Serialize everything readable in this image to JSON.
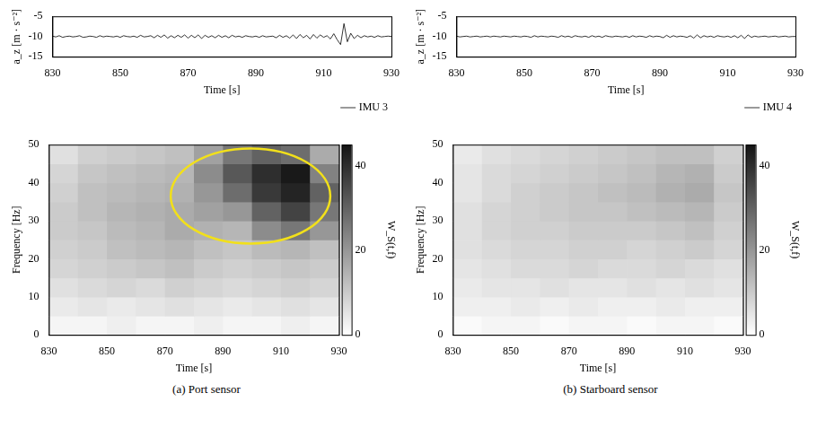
{
  "chart_data": [
    {
      "type": "line",
      "xlabel": "Time [s]",
      "ylabel": "a_z [m · s⁻²]",
      "xlim": [
        830,
        930
      ],
      "xticks": [
        830,
        850,
        870,
        890,
        910,
        930
      ],
      "ylim": [
        -15,
        -5
      ],
      "yticks": [
        -15,
        -10,
        -5
      ],
      "grid": false,
      "legend": "lower right",
      "x": [
        830,
        831,
        832,
        833,
        834,
        835,
        836,
        837,
        838,
        839,
        840,
        841,
        842,
        843,
        844,
        845,
        846,
        847,
        848,
        849,
        850,
        851,
        852,
        853,
        854,
        855,
        856,
        857,
        858,
        859,
        860,
        861,
        862,
        863,
        864,
        865,
        866,
        867,
        868,
        869,
        870,
        871,
        872,
        873,
        874,
        875,
        876,
        877,
        878,
        879,
        880,
        881,
        882,
        883,
        884,
        885,
        886,
        887,
        888,
        889,
        890,
        891,
        892,
        893,
        894,
        895,
        896,
        897,
        898,
        899,
        900,
        901,
        902,
        903,
        904,
        905,
        906,
        907,
        908,
        909,
        910,
        911,
        912,
        913,
        914,
        915,
        916,
        917,
        918,
        919,
        920,
        921,
        922,
        923,
        924,
        925,
        926,
        927,
        928,
        929,
        930
      ],
      "series": [
        {
          "name": "IMU 3",
          "color": "#000000",
          "values": [
            -9.9,
            -10.1,
            -9.8,
            -10.2,
            -10.0,
            -9.9,
            -10.1,
            -10.0,
            -9.8,
            -10.2,
            -10.1,
            -9.9,
            -10.0,
            -10.2,
            -9.8,
            -10.1,
            -9.9,
            -10.0,
            -10.1,
            -9.9,
            -10.2,
            -9.8,
            -10.0,
            -10.1,
            -9.9,
            -10.2,
            -9.7,
            -10.1,
            -10.0,
            -9.8,
            -10.3,
            -9.7,
            -10.2,
            -9.6,
            -10.4,
            -9.8,
            -10.3,
            -9.7,
            -10.2,
            -9.6,
            -10.4,
            -9.7,
            -10.3,
            -9.6,
            -10.5,
            -9.7,
            -10.2,
            -9.8,
            -10.3,
            -9.7,
            -10.2,
            -9.8,
            -10.3,
            -9.7,
            -10.1,
            -9.9,
            -10.2,
            -9.8,
            -10.0,
            -10.1,
            -9.9,
            -10.2,
            -9.8,
            -10.1,
            -10.0,
            -9.9,
            -10.3,
            -9.7,
            -10.2,
            -9.8,
            -10.4,
            -9.6,
            -10.5,
            -9.5,
            -10.3,
            -9.7,
            -10.6,
            -9.5,
            -10.4,
            -9.6,
            -10.2,
            -9.8,
            -10.6,
            -9.3,
            -10.8,
            -12.0,
            -6.8,
            -11.3,
            -9.2,
            -10.5,
            -9.7,
            -10.3,
            -9.8,
            -10.1,
            -9.9,
            -10.2,
            -9.8,
            -10.1,
            -10.0,
            -9.9,
            -10.0
          ]
        }
      ]
    },
    {
      "type": "heatmap",
      "xlabel": "Time [s]",
      "ylabel": "Frequency [Hz]",
      "caption": "(a) Port sensor",
      "xlim": [
        830,
        930
      ],
      "xticks": [
        830,
        850,
        870,
        890,
        910,
        930
      ],
      "ylim": [
        0,
        50
      ],
      "yticks": [
        0,
        10,
        20,
        30,
        40,
        50
      ],
      "x_bins": [
        830,
        840,
        850,
        860,
        870,
        880,
        890,
        900,
        910,
        920,
        930
      ],
      "y_bins": [
        0,
        5,
        10,
        15,
        20,
        25,
        30,
        35,
        40,
        45,
        50
      ],
      "cells": [
        [
          2,
          2,
          3,
          2,
          2,
          3,
          2,
          2,
          3,
          2
        ],
        [
          4,
          5,
          4,
          5,
          6,
          5,
          4,
          5,
          6,
          5
        ],
        [
          6,
          7,
          8,
          7,
          9,
          8,
          7,
          8,
          9,
          8
        ],
        [
          8,
          9,
          10,
          11,
          12,
          10,
          9,
          10,
          11,
          10
        ],
        [
          9,
          10,
          12,
          13,
          14,
          12,
          11,
          13,
          14,
          12
        ],
        [
          10,
          11,
          13,
          14,
          16,
          15,
          14,
          22,
          26,
          20
        ],
        [
          10,
          12,
          14,
          15,
          16,
          18,
          20,
          30,
          36,
          26
        ],
        [
          9,
          12,
          13,
          14,
          15,
          20,
          28,
          38,
          42,
          30
        ],
        [
          8,
          11,
          12,
          13,
          14,
          22,
          32,
          40,
          44,
          24
        ],
        [
          6,
          9,
          10,
          11,
          12,
          18,
          26,
          30,
          28,
          16
        ]
      ],
      "color_label": "W_S(t,f)",
      "clim": [
        0,
        45
      ],
      "cticks": [
        0,
        20,
        40
      ],
      "highlight": {
        "time": [
          872,
          927
        ],
        "frequency": [
          24,
          49
        ],
        "color": "#f2e01a"
      }
    },
    {
      "type": "line",
      "xlabel": "Time [s]",
      "ylabel": "a_z [m · s⁻²]",
      "xlim": [
        830,
        930
      ],
      "xticks": [
        830,
        850,
        870,
        890,
        910,
        930
      ],
      "ylim": [
        -15,
        -5
      ],
      "yticks": [
        -15,
        -10,
        -5
      ],
      "grid": false,
      "legend": "lower right",
      "x": [
        830,
        831,
        832,
        833,
        834,
        835,
        836,
        837,
        838,
        839,
        840,
        841,
        842,
        843,
        844,
        845,
        846,
        847,
        848,
        849,
        850,
        851,
        852,
        853,
        854,
        855,
        856,
        857,
        858,
        859,
        860,
        861,
        862,
        863,
        864,
        865,
        866,
        867,
        868,
        869,
        870,
        871,
        872,
        873,
        874,
        875,
        876,
        877,
        878,
        879,
        880,
        881,
        882,
        883,
        884,
        885,
        886,
        887,
        888,
        889,
        890,
        891,
        892,
        893,
        894,
        895,
        896,
        897,
        898,
        899,
        900,
        901,
        902,
        903,
        904,
        905,
        906,
        907,
        908,
        909,
        910,
        911,
        912,
        913,
        914,
        915,
        916,
        917,
        918,
        919,
        920,
        921,
        922,
        923,
        924,
        925,
        926,
        927,
        928,
        929,
        930
      ],
      "series": [
        {
          "name": "IMU 4",
          "color": "#000000",
          "values": [
            -9.9,
            -10.1,
            -10.0,
            -9.9,
            -10.1,
            -10.0,
            -9.9,
            -10.1,
            -10.0,
            -9.9,
            -10.1,
            -9.9,
            -10.0,
            -10.1,
            -9.9,
            -10.0,
            -10.1,
            -9.9,
            -10.0,
            -10.1,
            -9.9,
            -10.0,
            -10.2,
            -9.8,
            -10.1,
            -9.9,
            -10.0,
            -10.1,
            -9.9,
            -10.0,
            -10.2,
            -9.8,
            -10.1,
            -9.9,
            -10.2,
            -9.8,
            -10.0,
            -10.1,
            -9.9,
            -10.2,
            -9.8,
            -10.1,
            -9.9,
            -10.2,
            -9.8,
            -10.0,
            -10.1,
            -9.9,
            -10.0,
            -10.1,
            -9.9,
            -10.2,
            -9.8,
            -10.1,
            -9.9,
            -10.0,
            -10.2,
            -9.8,
            -10.1,
            -9.9,
            -10.0,
            -10.3,
            -9.7,
            -10.2,
            -9.8,
            -10.1,
            -9.9,
            -10.0,
            -10.2,
            -9.8,
            -10.4,
            -9.6,
            -10.3,
            -9.8,
            -10.1,
            -9.9,
            -10.2,
            -9.8,
            -10.0,
            -10.1,
            -9.9,
            -10.2,
            -9.8,
            -10.3,
            -9.7,
            -10.5,
            -9.6,
            -10.2,
            -9.9,
            -10.1,
            -10.0,
            -9.9,
            -10.1,
            -10.0,
            -9.9,
            -10.1,
            -10.0,
            -9.9,
            -10.1,
            -10.0,
            -10.0
          ]
        }
      ]
    },
    {
      "type": "heatmap",
      "xlabel": "Time [s]",
      "ylabel": "Frequency [Hz]",
      "caption": "(b) Starboard sensor",
      "xlim": [
        830,
        930
      ],
      "xticks": [
        830,
        850,
        870,
        890,
        910,
        930
      ],
      "ylim": [
        0,
        50
      ],
      "yticks": [
        0,
        10,
        20,
        30,
        40,
        50
      ],
      "x_bins": [
        830,
        840,
        850,
        860,
        870,
        880,
        890,
        900,
        910,
        920,
        930
      ],
      "y_bins": [
        0,
        5,
        10,
        15,
        20,
        25,
        30,
        35,
        40,
        45,
        50
      ],
      "cells": [
        [
          1,
          2,
          2,
          1,
          2,
          2,
          1,
          2,
          2,
          1
        ],
        [
          3,
          3,
          4,
          3,
          4,
          3,
          3,
          4,
          3,
          3
        ],
        [
          4,
          5,
          5,
          6,
          5,
          5,
          6,
          5,
          6,
          5
        ],
        [
          5,
          6,
          7,
          7,
          8,
          7,
          7,
          8,
          7,
          6
        ],
        [
          6,
          7,
          8,
          8,
          9,
          9,
          8,
          9,
          10,
          8
        ],
        [
          6,
          8,
          9,
          9,
          10,
          10,
          10,
          11,
          12,
          9
        ],
        [
          6,
          8,
          9,
          10,
          11,
          11,
          12,
          13,
          14,
          10
        ],
        [
          5,
          7,
          9,
          10,
          11,
          12,
          13,
          15,
          16,
          11
        ],
        [
          5,
          7,
          8,
          9,
          10,
          11,
          12,
          14,
          15,
          10
        ],
        [
          4,
          6,
          7,
          8,
          9,
          10,
          11,
          12,
          12,
          9
        ]
      ],
      "color_label": "W_S(t,f)",
      "clim": [
        0,
        45
      ],
      "cticks": [
        0,
        20,
        40
      ]
    }
  ]
}
